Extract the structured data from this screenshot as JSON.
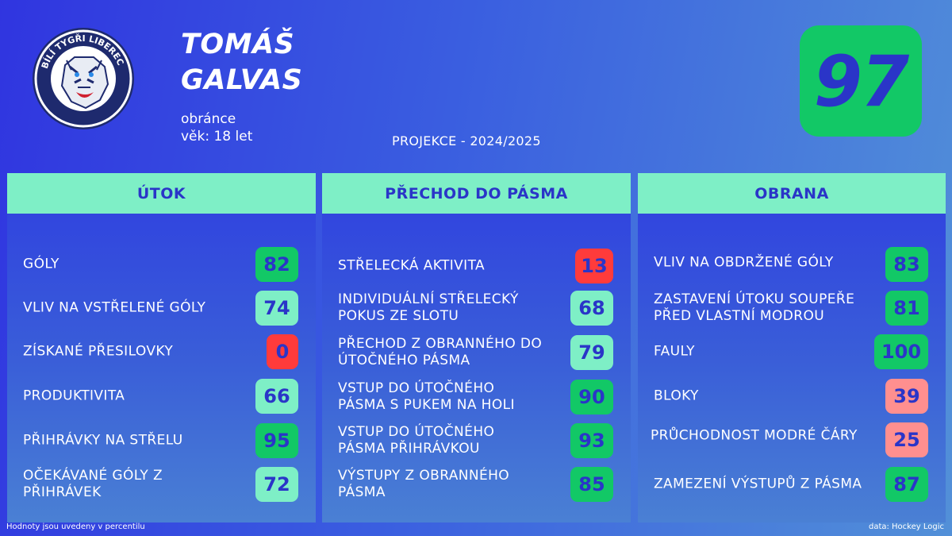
{
  "logo": {
    "text": "BÍLÍ TYGŘI LIBEREC",
    "icon": "tiger-logo-icon"
  },
  "player": {
    "first_name": "TOMÁŠ",
    "last_name": "GALVAS",
    "position": "obránce",
    "age": "věk: 18 let"
  },
  "projection": "PROJEKCE - 2024/2025",
  "overall": "97",
  "colors": {
    "dark_green": "#12c866",
    "light_green": "#7eefc6",
    "red": "#ff3b3b",
    "pink": "#ff8f8f",
    "navy_text": "#2a35c8"
  },
  "panels": [
    {
      "title": "ÚTOK",
      "rows": [
        {
          "label": "GÓLY",
          "value": "82",
          "color": "dark-green"
        },
        {
          "label": "VLIV NA VSTŘELENÉ GÓLY",
          "value": "74",
          "color": "light-green"
        },
        {
          "label": "ZÍSKANÉ PŘESILOVKY",
          "value": "0",
          "color": "red"
        },
        {
          "label": "PRODUKTIVITA",
          "value": "66",
          "color": "light-green"
        },
        {
          "label": "PŘIHRÁVKY NA STŘELU",
          "value": "95",
          "color": "dark-green"
        },
        {
          "label": "OČEKÁVANÉ GÓLY Z PŘIHRÁVEK",
          "value": "72",
          "color": "light-green"
        }
      ]
    },
    {
      "title": "PŘECHOD DO PÁSMA",
      "rows": [
        {
          "label": "STŘELECKÁ AKTIVITA",
          "value": "13",
          "color": "red"
        },
        {
          "label": "INDIVIDUÁLNÍ STŘELECKÝ POKUS ZE SLOTU",
          "value": "68",
          "color": "light-green"
        },
        {
          "label": "PŘECHOD Z OBRANNÉHO DO ÚTOČNÉHO PÁSMA",
          "value": "79",
          "color": "light-green"
        },
        {
          "label": "VSTUP DO ÚTOČNÉHO PÁSMA S PUKEM NA HOLI",
          "value": "90",
          "color": "dark-green"
        },
        {
          "label": "VSTUP DO ÚTOČNÉHO PÁSMA PŘIHRÁVKOU",
          "value": "93",
          "color": "dark-green"
        },
        {
          "label": "VÝSTUPY Z OBRANNÉHO PÁSMA",
          "value": "85",
          "color": "dark-green"
        }
      ]
    },
    {
      "title": "OBRANA",
      "rows": [
        {
          "label": "VLIV NA OBDRŽENÉ GÓLY",
          "value": "83",
          "color": "dark-green"
        },
        {
          "label": "ZASTAVENÍ ÚTOKU SOUPEŘE PŘED VLASTNÍ MODROU",
          "value": "81",
          "color": "dark-green"
        },
        {
          "label": "FAULY",
          "value": "100",
          "color": "dark-green"
        },
        {
          "label": "BLOKY",
          "value": "39",
          "color": "pink"
        },
        {
          "label": "PRŮCHODNOST MODRÉ ČÁRY",
          "value": "25",
          "color": "pink"
        },
        {
          "label": "ZAMEZENÍ VÝSTUPŮ Z PÁSMA",
          "value": "87",
          "color": "dark-green"
        }
      ]
    }
  ],
  "footer": {
    "note": "Hodnoty jsou uvedeny v percentilu",
    "source": "data: Hockey Logic"
  }
}
